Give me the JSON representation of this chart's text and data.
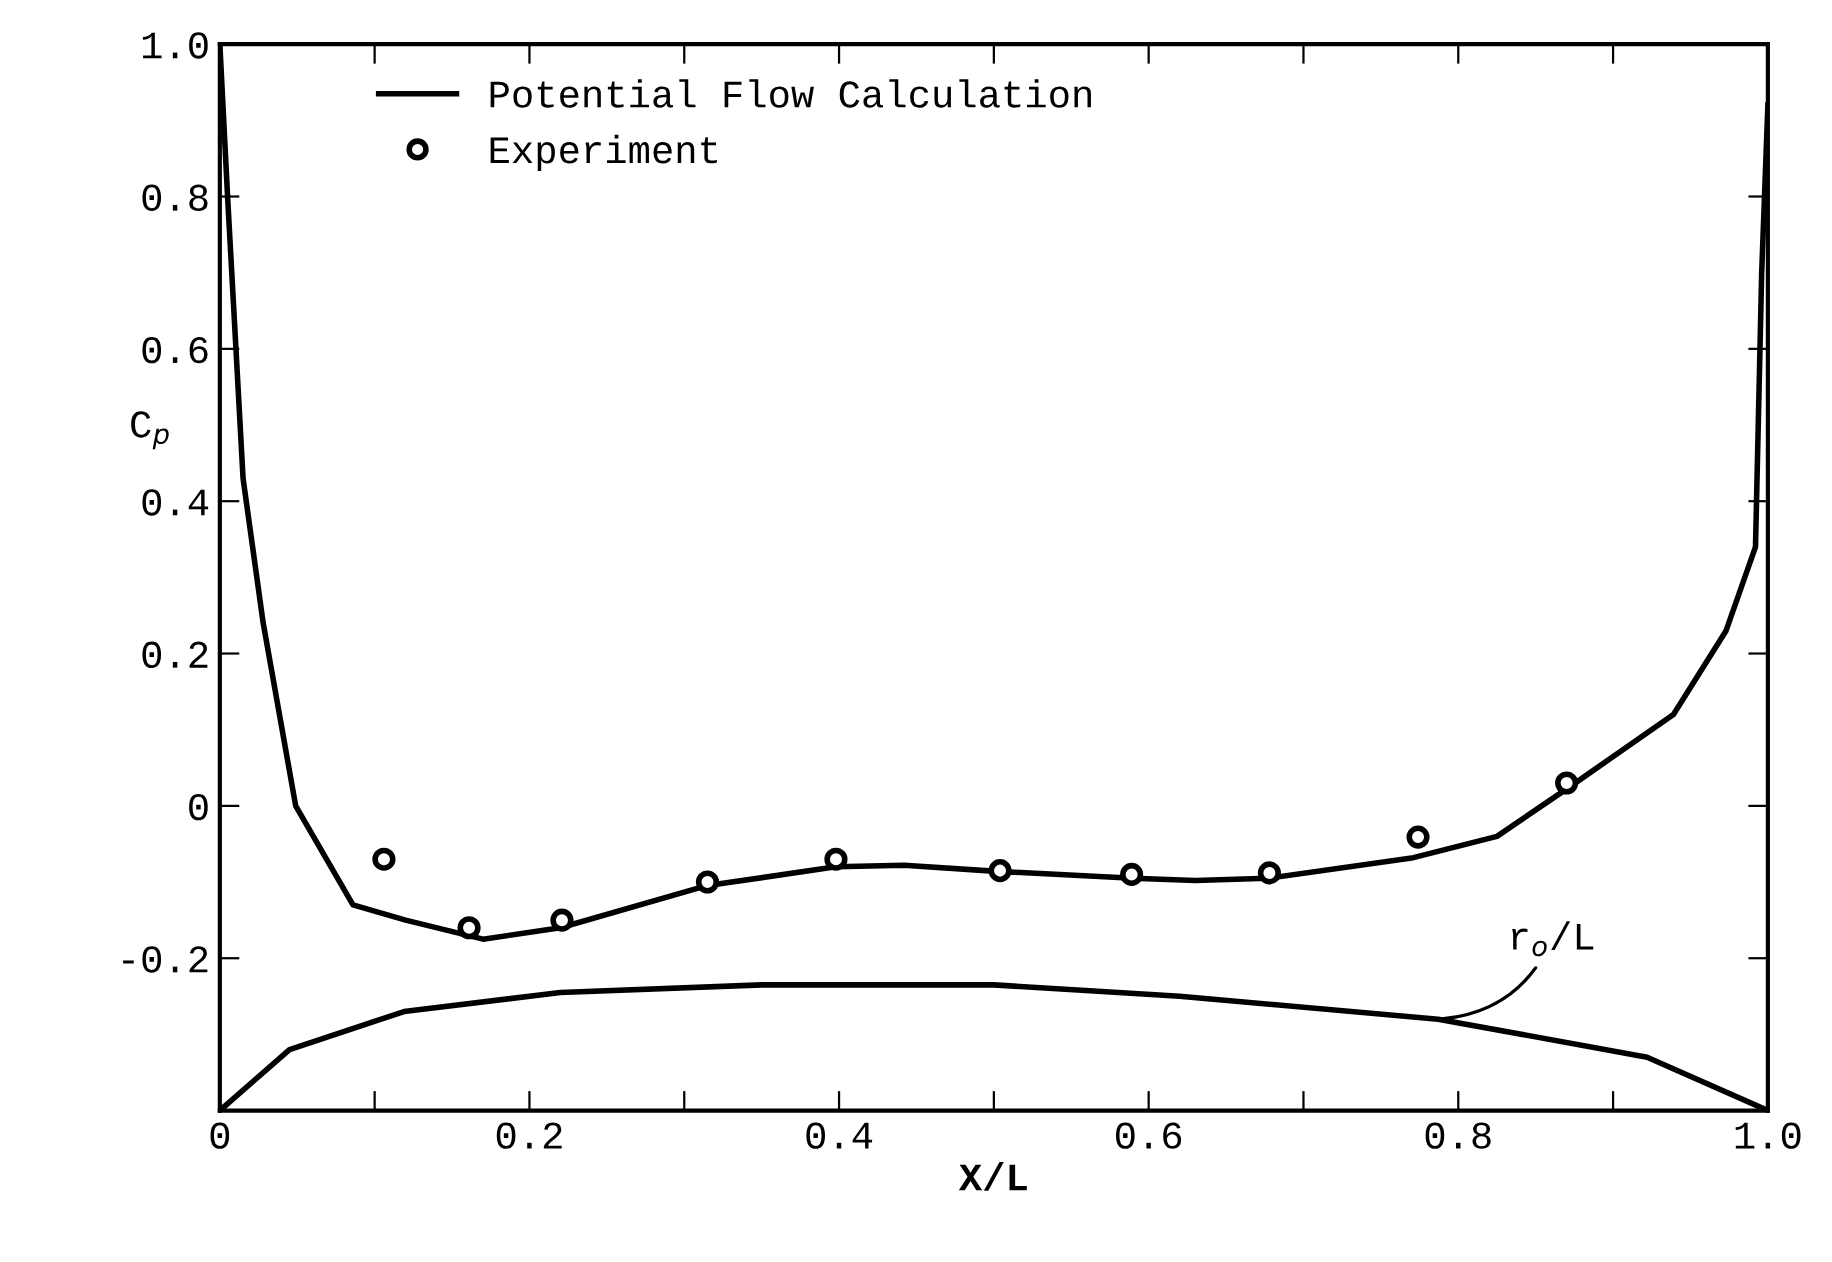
{
  "chart_data": {
    "type": "line",
    "xlabel": "X/L",
    "ylabel": "C$_{p}$",
    "xlim": [
      0,
      1.0
    ],
    "ylim": [
      -0.4,
      1.0
    ],
    "xticks": [
      0,
      {
        "value": 0.1,
        "label": null
      },
      0.2,
      {
        "value": 0.3,
        "label": null
      },
      0.4,
      {
        "value": 0.5,
        "label": null
      },
      0.6,
      {
        "value": 0.7,
        "label": null
      },
      0.8,
      {
        "value": 0.9,
        "label": null
      },
      {
        "value": 1.0,
        "label": "1.0"
      }
    ],
    "yticks": [
      {
        "value": -0.4,
        "label": null
      },
      -0.2,
      0,
      0.2,
      0.4,
      0.6,
      0.8,
      {
        "value": 1.0,
        "label": "1.0"
      }
    ],
    "grid": false,
    "legend": "top left",
    "annotations": [
      {
        "text": "r$_{o}$/L",
        "x": 0.787,
        "y": -0.28
      }
    ],
    "series": [
      {
        "name": "Potential Flow Calculation",
        "color": "#000000",
        "marker": "none",
        "line_style": "solid",
        "x": [
          0,
          0.005,
          0.015,
          0.028,
          0.049,
          0.086,
          0.12,
          0.17,
          0.22,
          0.314,
          0.398,
          0.442,
          0.502,
          0.59,
          0.63,
          0.677,
          0.771,
          0.825,
          0.872,
          0.939,
          0.973,
          0.992,
          0.996,
          1.0
        ],
        "values": [
          1.0,
          0.8,
          0.43,
          0.24,
          0.0,
          -0.13,
          -0.15,
          -0.175,
          -0.16,
          -0.105,
          -0.08,
          -0.078,
          -0.086,
          -0.095,
          -0.098,
          -0.095,
          -0.068,
          -0.04,
          0.025,
          0.12,
          0.23,
          0.34,
          0.7,
          0.92
        ]
      },
      {
        "name": "Experiment",
        "type": "scatter",
        "color": "#000000",
        "marker": "circle",
        "x": [
          0.106,
          0.161,
          0.221,
          0.315,
          0.398,
          0.504,
          0.589,
          0.678,
          0.774,
          0.87
        ],
        "values": [
          -0.07,
          -0.16,
          -0.15,
          -0.1,
          -0.07,
          -0.085,
          -0.09,
          -0.088,
          -0.041,
          0.03
        ]
      },
      {
        "color": "#000000",
        "marker": "none",
        "line_style": "solid",
        "x": [
          0,
          0.045,
          0.119,
          0.22,
          0.35,
          0.5,
          0.62,
          0.787,
          0.922,
          1.0
        ],
        "values": [
          -0.4,
          -0.32,
          -0.27,
          -0.245,
          -0.235,
          -0.235,
          -0.25,
          -0.28,
          -0.33,
          -0.4
        ]
      }
    ]
  }
}
